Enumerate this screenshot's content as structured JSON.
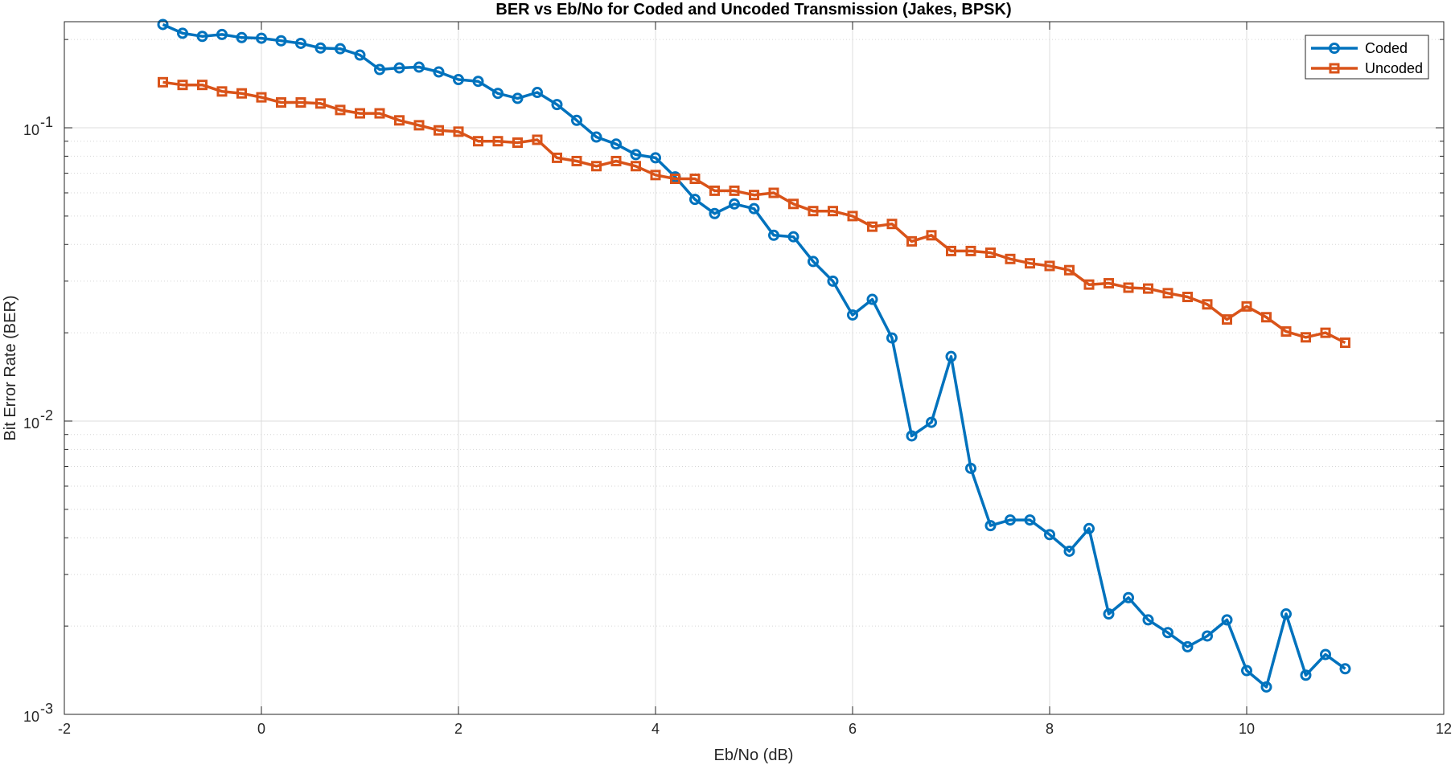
{
  "chart_data": {
    "type": "line",
    "title": "BER vs Eb/No for Coded and Uncoded Transmission (Jakes, BPSK)",
    "xlabel": "Eb/No (dB)",
    "ylabel": "Bit Error Rate (BER)",
    "xlim": [
      -2,
      12
    ],
    "ylim": [
      0.001,
      0.23
    ],
    "yscale": "log",
    "grid": true,
    "legend_position": "top-right",
    "x_ticks": [
      "-2",
      "0",
      "2",
      "4",
      "6",
      "8",
      "10",
      "12"
    ],
    "y_ticks": [
      {
        "base": "10",
        "exp": "-3",
        "value": 0.001
      },
      {
        "base": "10",
        "exp": "-2",
        "value": 0.01
      },
      {
        "base": "10",
        "exp": "-1",
        "value": 0.1
      }
    ],
    "x": [
      -1.0,
      -0.8,
      -0.6,
      -0.4,
      -0.2,
      0.0,
      0.2,
      0.4,
      0.6,
      0.8,
      1.0,
      1.2,
      1.4,
      1.6,
      1.8,
      2.0,
      2.2,
      2.4,
      2.6,
      2.8,
      3.0,
      3.2,
      3.4,
      3.6,
      3.8,
      4.0,
      4.2,
      4.4,
      4.6,
      4.8,
      5.0,
      5.2,
      5.4,
      5.6,
      5.8,
      6.0,
      6.2,
      6.4,
      6.6,
      6.8,
      7.0,
      7.2,
      7.4,
      7.6,
      7.8,
      8.0,
      8.2,
      8.4,
      8.6,
      8.8,
      9.0,
      9.2,
      9.4,
      9.6,
      9.8,
      10.0,
      10.2,
      10.4,
      10.6,
      10.8,
      11.0
    ],
    "series": [
      {
        "name": "Coded",
        "color": "#0072BD",
        "marker": "circle",
        "values": [
          0.225,
          0.21,
          0.205,
          0.208,
          0.203,
          0.202,
          0.198,
          0.194,
          0.187,
          0.186,
          0.177,
          0.158,
          0.16,
          0.161,
          0.155,
          0.146,
          0.144,
          0.131,
          0.126,
          0.132,
          0.12,
          0.106,
          0.093,
          0.088,
          0.081,
          0.079,
          0.068,
          0.057,
          0.051,
          0.055,
          0.053,
          0.043,
          0.0425,
          0.035,
          0.03,
          0.023,
          0.026,
          0.0192,
          0.0089,
          0.0099,
          0.0166,
          0.0069,
          0.0044,
          0.0046,
          0.0046,
          0.0041,
          0.0036,
          0.0043,
          0.0022,
          0.0025,
          0.0021,
          0.0019,
          0.0017,
          0.00185,
          0.0021,
          0.00141,
          0.00124,
          0.0022,
          0.00136,
          0.0016,
          0.00143
        ]
      },
      {
        "name": "Uncoded",
        "color": "#D95319",
        "marker": "square",
        "values": [
          0.143,
          0.14,
          0.14,
          0.133,
          0.131,
          0.127,
          0.122,
          0.122,
          0.121,
          0.115,
          0.112,
          0.112,
          0.106,
          0.102,
          0.098,
          0.097,
          0.09,
          0.09,
          0.089,
          0.091,
          0.079,
          0.077,
          0.074,
          0.077,
          0.074,
          0.069,
          0.067,
          0.067,
          0.061,
          0.061,
          0.059,
          0.06,
          0.055,
          0.052,
          0.052,
          0.05,
          0.046,
          0.047,
          0.041,
          0.043,
          0.038,
          0.038,
          0.0375,
          0.0357,
          0.0345,
          0.0338,
          0.0327,
          0.0292,
          0.0295,
          0.0285,
          0.0283,
          0.0273,
          0.0265,
          0.025,
          0.0222,
          0.0246,
          0.0226,
          0.0202,
          0.0193,
          0.02,
          0.0185
        ]
      }
    ]
  }
}
